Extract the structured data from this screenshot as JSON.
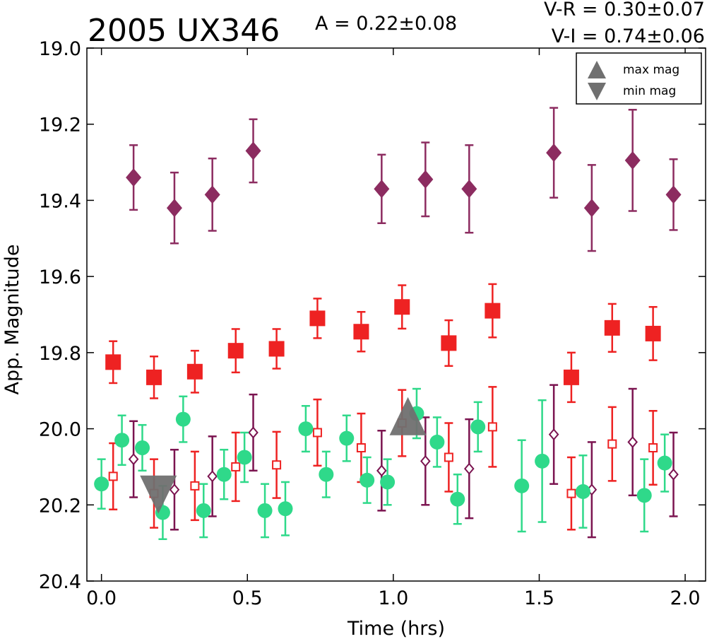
{
  "chart_data": {
    "type": "scatter",
    "title": "2005 UX346",
    "annotations": {
      "amplitude": "A  = 0.22±0.08",
      "v_r": "V-R = 0.30±0.07",
      "v_i": "V-I  = 0.74±0.06"
    },
    "xlabel": "Time (hrs)",
    "ylabel": "App. Magnitude",
    "xlim": [
      -0.05,
      2.07
    ],
    "ylim": [
      20.4,
      19.0
    ],
    "y_inverted": true,
    "grid": false,
    "xticks": [
      "0.0",
      "0.5",
      "1.0",
      "1.5",
      "2.0"
    ],
    "yticks": [
      "19.0",
      "19.2",
      "19.4",
      "19.6",
      "19.8",
      "20.0",
      "20.2",
      "20.4"
    ],
    "legend": {
      "placement": "top-right",
      "entries": [
        "max mag",
        "min mag"
      ]
    },
    "colors": {
      "purple": "#7b1450",
      "purple_marker": "#8c2c60",
      "red": "#ee2222",
      "green": "#22c46a",
      "green_marker": "#2fd98a",
      "gray": "#707070"
    },
    "series": [
      {
        "marker": "diamond-filled",
        "color": "#8c2c60",
        "points": [
          {
            "x": 0.11,
            "y": 19.34,
            "err": 0.085
          },
          {
            "x": 0.25,
            "y": 19.42,
            "err": 0.093
          },
          {
            "x": 0.38,
            "y": 19.385,
            "err": 0.095
          },
          {
            "x": 0.52,
            "y": 19.27,
            "err": 0.083
          },
          {
            "x": 0.96,
            "y": 19.37,
            "err": 0.09
          },
          {
            "x": 1.11,
            "y": 19.345,
            "err": 0.097
          },
          {
            "x": 1.26,
            "y": 19.37,
            "err": 0.115
          },
          {
            "x": 1.55,
            "y": 19.275,
            "err": 0.118
          },
          {
            "x": 1.68,
            "y": 19.42,
            "err": 0.113
          },
          {
            "x": 1.82,
            "y": 19.295,
            "err": 0.133
          },
          {
            "x": 1.96,
            "y": 19.385,
            "err": 0.093
          }
        ]
      },
      {
        "marker": "square-filled",
        "color": "#ee2222",
        "points": [
          {
            "x": 0.04,
            "y": 19.825,
            "err": 0.055
          },
          {
            "x": 0.18,
            "y": 19.865,
            "err": 0.055
          },
          {
            "x": 0.32,
            "y": 19.85,
            "err": 0.055
          },
          {
            "x": 0.46,
            "y": 19.795,
            "err": 0.057
          },
          {
            "x": 0.6,
            "y": 19.79,
            "err": 0.052
          },
          {
            "x": 0.74,
            "y": 19.71,
            "err": 0.052
          },
          {
            "x": 0.89,
            "y": 19.745,
            "err": 0.052
          },
          {
            "x": 1.03,
            "y": 19.68,
            "err": 0.057
          },
          {
            "x": 1.19,
            "y": 19.775,
            "err": 0.06
          },
          {
            "x": 1.34,
            "y": 19.69,
            "err": 0.07
          },
          {
            "x": 1.61,
            "y": 19.865,
            "err": 0.065
          },
          {
            "x": 1.75,
            "y": 19.735,
            "err": 0.063
          },
          {
            "x": 1.89,
            "y": 19.75,
            "err": 0.07
          }
        ]
      },
      {
        "marker": "square-open",
        "color": "#ee2222",
        "points": [
          {
            "x": 0.04,
            "y": 20.125,
            "err": 0.087
          },
          {
            "x": 0.18,
            "y": 20.17,
            "err": 0.09
          },
          {
            "x": 0.32,
            "y": 20.15,
            "err": 0.09
          },
          {
            "x": 0.46,
            "y": 20.1,
            "err": 0.09
          },
          {
            "x": 0.6,
            "y": 20.095,
            "err": 0.087
          },
          {
            "x": 0.74,
            "y": 20.01,
            "err": 0.087
          },
          {
            "x": 0.89,
            "y": 20.05,
            "err": 0.09
          },
          {
            "x": 1.03,
            "y": 19.985,
            "err": 0.087
          },
          {
            "x": 1.19,
            "y": 20.075,
            "err": 0.09
          },
          {
            "x": 1.34,
            "y": 19.995,
            "err": 0.105
          },
          {
            "x": 1.61,
            "y": 20.17,
            "err": 0.095
          },
          {
            "x": 1.75,
            "y": 20.04,
            "err": 0.097
          },
          {
            "x": 1.89,
            "y": 20.05,
            "err": 0.097
          }
        ]
      },
      {
        "marker": "circle-filled",
        "color": "#2fd98a",
        "points": [
          {
            "x": 0.0,
            "y": 20.145,
            "err": 0.065
          },
          {
            "x": 0.07,
            "y": 20.03,
            "err": 0.065
          },
          {
            "x": 0.14,
            "y": 20.05,
            "err": 0.06
          },
          {
            "x": 0.21,
            "y": 20.22,
            "err": 0.07
          },
          {
            "x": 0.28,
            "y": 19.975,
            "err": 0.06
          },
          {
            "x": 0.35,
            "y": 20.215,
            "err": 0.07
          },
          {
            "x": 0.42,
            "y": 20.12,
            "err": 0.065
          },
          {
            "x": 0.49,
            "y": 20.075,
            "err": 0.065
          },
          {
            "x": 0.56,
            "y": 20.215,
            "err": 0.07
          },
          {
            "x": 0.63,
            "y": 20.21,
            "err": 0.07
          },
          {
            "x": 0.7,
            "y": 20.0,
            "err": 0.06
          },
          {
            "x": 0.77,
            "y": 20.12,
            "err": 0.06
          },
          {
            "x": 0.84,
            "y": 20.025,
            "err": 0.06
          },
          {
            "x": 0.91,
            "y": 20.135,
            "err": 0.06
          },
          {
            "x": 0.98,
            "y": 20.14,
            "err": 0.06
          },
          {
            "x": 1.08,
            "y": 19.96,
            "err": 0.065
          },
          {
            "x": 1.15,
            "y": 20.035,
            "err": 0.065
          },
          {
            "x": 1.22,
            "y": 20.185,
            "err": 0.065
          },
          {
            "x": 1.29,
            "y": 19.995,
            "err": 0.065
          },
          {
            "x": 1.44,
            "y": 20.15,
            "err": 0.12
          },
          {
            "x": 1.51,
            "y": 20.085,
            "err": 0.16
          },
          {
            "x": 1.65,
            "y": 20.165,
            "err": 0.095
          },
          {
            "x": 1.86,
            "y": 20.175,
            "err": 0.095
          },
          {
            "x": 1.93,
            "y": 20.09,
            "err": 0.075
          }
        ]
      },
      {
        "marker": "diamond-open",
        "color": "#7b1450",
        "points": [
          {
            "x": 0.11,
            "y": 20.08,
            "err": 0.1
          },
          {
            "x": 0.25,
            "y": 20.16,
            "err": 0.105
          },
          {
            "x": 0.38,
            "y": 20.125,
            "err": 0.105
          },
          {
            "x": 0.52,
            "y": 20.01,
            "err": 0.1
          },
          {
            "x": 0.96,
            "y": 20.11,
            "err": 0.105
          },
          {
            "x": 1.11,
            "y": 20.085,
            "err": 0.115
          },
          {
            "x": 1.26,
            "y": 20.105,
            "err": 0.13
          },
          {
            "x": 1.55,
            "y": 20.015,
            "err": 0.13
          },
          {
            "x": 1.68,
            "y": 20.16,
            "err": 0.125
          },
          {
            "x": 1.82,
            "y": 20.035,
            "err": 0.14
          },
          {
            "x": 1.96,
            "y": 20.12,
            "err": 0.11
          }
        ]
      },
      {
        "name": "max mag",
        "marker": "triangle-up",
        "color": "#707070",
        "points": [
          {
            "x": 1.05,
            "y": 19.98
          }
        ]
      },
      {
        "name": "min mag",
        "marker": "triangle-down",
        "color": "#707070",
        "points": [
          {
            "x": 0.195,
            "y": 20.16
          }
        ]
      }
    ]
  }
}
